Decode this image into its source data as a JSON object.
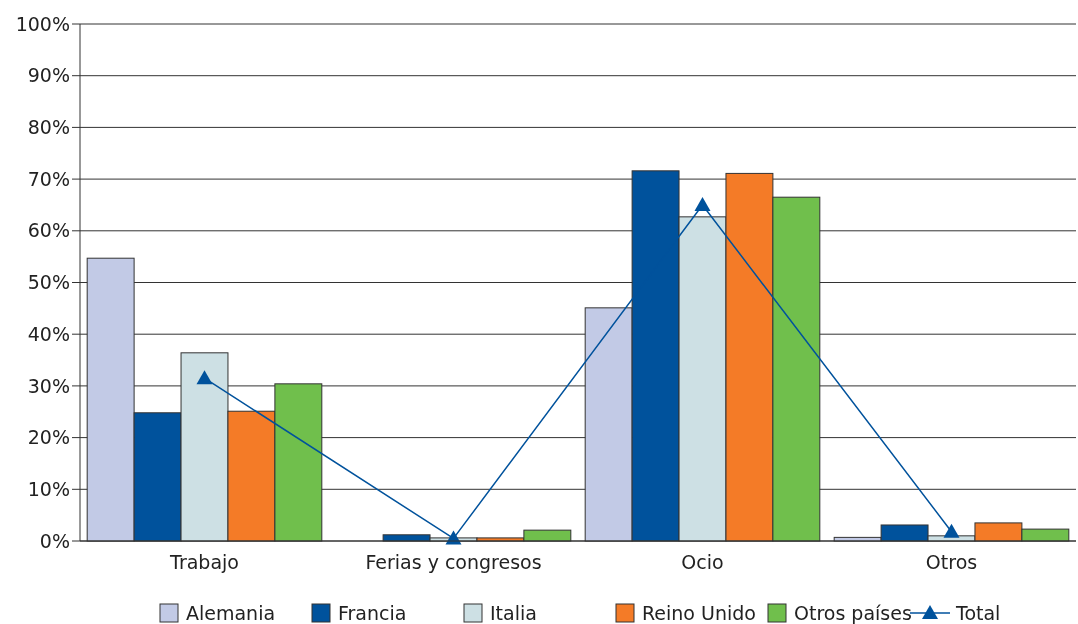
{
  "chart_data": {
    "type": "bar",
    "categories": [
      "Trabajo",
      "Ferias y congresos",
      "Ocio",
      "Otros"
    ],
    "series": [
      {
        "name": "Alemania",
        "color": "#c2cae6",
        "values": [
          54.7,
          0,
          45.1,
          0.7
        ]
      },
      {
        "name": "Francia",
        "color": "#00529c",
        "values": [
          24.8,
          1.2,
          71.6,
          3.1
        ]
      },
      {
        "name": "Italia",
        "color": "#cde0e4",
        "values": [
          36.4,
          0.6,
          62.7,
          1.0
        ]
      },
      {
        "name": "Reino Unido",
        "color": "#f47b27",
        "values": [
          25.1,
          0.6,
          71.1,
          3.5
        ]
      },
      {
        "name": "Otros países",
        "color": "#70bf4c",
        "values": [
          30.4,
          2.1,
          66.5,
          2.3
        ]
      },
      {
        "name": "Total",
        "type": "line",
        "color": "#00529c",
        "marker": "triangle",
        "values": [
          31.5,
          0.5,
          65.0,
          1.8
        ]
      }
    ],
    "ylim": [
      0,
      100
    ],
    "yticks": [
      {
        "value": 0,
        "label": "0%"
      },
      {
        "value": 10,
        "label": "10%"
      },
      {
        "value": 20,
        "label": "20%"
      },
      {
        "value": 30,
        "label": "30%"
      },
      {
        "value": 40,
        "label": "40%"
      },
      {
        "value": 50,
        "label": "50%"
      },
      {
        "value": 60,
        "label": "60%"
      },
      {
        "value": 70,
        "label": "70%"
      },
      {
        "value": 80,
        "label": "80%"
      },
      {
        "value": 90,
        "label": "90%"
      },
      {
        "value": 100,
        "label": "100%"
      }
    ],
    "grid": "y",
    "legend": "bottom"
  }
}
